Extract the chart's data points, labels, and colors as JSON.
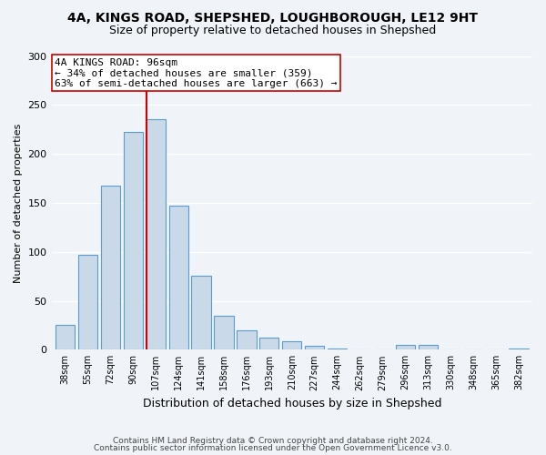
{
  "title_line1": "4A, KINGS ROAD, SHEPSHED, LOUGHBOROUGH, LE12 9HT",
  "title_line2": "Size of property relative to detached houses in Shepshed",
  "xlabel": "Distribution of detached houses by size in Shepshed",
  "ylabel": "Number of detached properties",
  "bar_labels": [
    "38sqm",
    "55sqm",
    "72sqm",
    "90sqm",
    "107sqm",
    "124sqm",
    "141sqm",
    "158sqm",
    "176sqm",
    "193sqm",
    "210sqm",
    "227sqm",
    "244sqm",
    "262sqm",
    "279sqm",
    "296sqm",
    "313sqm",
    "330sqm",
    "348sqm",
    "365sqm",
    "382sqm"
  ],
  "bar_values": [
    25,
    97,
    168,
    222,
    235,
    147,
    76,
    35,
    20,
    12,
    9,
    4,
    1,
    0,
    0,
    5,
    5,
    0,
    0,
    0,
    1
  ],
  "bar_color": "#c9d9e8",
  "bar_edge_color": "#5b9bd5",
  "vline_x": 4.0,
  "vline_color": "#cc0000",
  "annotation_text": "4A KINGS ROAD: 96sqm\n← 34% of detached houses are smaller (359)\n63% of semi-detached houses are larger (663) →",
  "annotation_box_color": "#ffffff",
  "annotation_box_edge": "#cc0000",
  "ylim": [
    0,
    300
  ],
  "yticks": [
    0,
    50,
    100,
    150,
    200,
    250,
    300
  ],
  "footnote_line1": "Contains HM Land Registry data © Crown copyright and database right 2024.",
  "footnote_line2": "Contains public sector information licensed under the Open Government Licence v3.0.",
  "bg_color": "#f0f4f8"
}
